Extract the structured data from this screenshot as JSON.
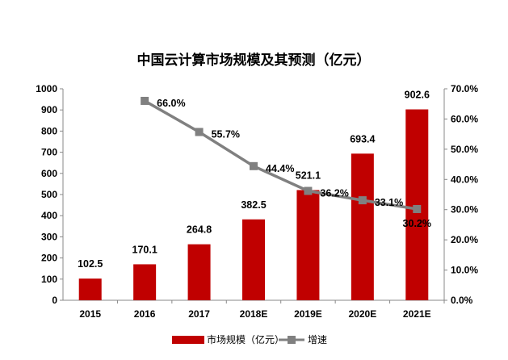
{
  "chart_data": {
    "type": "bar+line",
    "title": "中国云计算市场规模及其预测（亿元）",
    "categories": [
      "2015",
      "2016",
      "2017",
      "2018E",
      "2019E",
      "2020E",
      "2021E"
    ],
    "series": [
      {
        "name": "市场规模（亿元）",
        "type": "bar",
        "axis": "left",
        "color": "#C00000",
        "values": [
          102.5,
          170.1,
          264.8,
          382.5,
          521.1,
          693.4,
          902.6
        ],
        "labels": [
          "102.5",
          "170.1",
          "264.8",
          "382.5",
          "521.1",
          "693.4",
          "902.6"
        ]
      },
      {
        "name": "增速",
        "type": "line",
        "axis": "right",
        "color": "#808080",
        "values": [
          null,
          66.0,
          55.7,
          44.4,
          36.2,
          33.1,
          30.2
        ],
        "labels": [
          "",
          "66.0%",
          "55.7%",
          "44.4%",
          "36.2%",
          "33.1%",
          "30.2%"
        ]
      }
    ],
    "y_left": {
      "range": [
        0,
        1000
      ],
      "ticks": [
        "0",
        "100",
        "200",
        "300",
        "400",
        "500",
        "600",
        "700",
        "800",
        "900",
        "1000"
      ]
    },
    "y_right": {
      "range": [
        0,
        70
      ],
      "ticks": [
        "0.0%",
        "10.0%",
        "20.0%",
        "30.0%",
        "40.0%",
        "50.0%",
        "60.0%",
        "70.0%"
      ]
    },
    "grid": false,
    "legend": "bottom"
  }
}
